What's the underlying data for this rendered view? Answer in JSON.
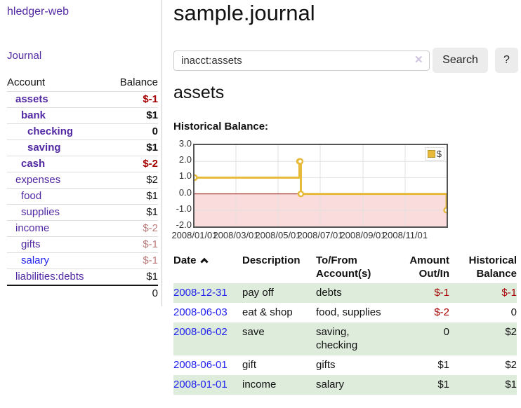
{
  "app": {
    "title": "hledger-web",
    "nav_journal": "Journal"
  },
  "sidebar": {
    "header": {
      "account": "Account",
      "balance": "Balance"
    },
    "accounts": [
      {
        "name": "assets",
        "balance": "$-1"
      },
      {
        "name": "bank",
        "balance": "$1"
      },
      {
        "name": "checking",
        "balance": "0"
      },
      {
        "name": "saving",
        "balance": "$1"
      },
      {
        "name": "cash",
        "balance": "$-2"
      },
      {
        "name": "expenses",
        "balance": "$2"
      },
      {
        "name": "food",
        "balance": "$1"
      },
      {
        "name": "supplies",
        "balance": "$1"
      },
      {
        "name": "income",
        "balance": "$-2"
      },
      {
        "name": "gifts",
        "balance": "$-1"
      },
      {
        "name": "salary",
        "balance": "$-1"
      },
      {
        "name": "liabilities:debts",
        "balance": "$1"
      }
    ],
    "total": "0"
  },
  "main": {
    "title": "sample.journal",
    "search": {
      "value": "inacct:assets",
      "clear_icon": "✕",
      "button": "Search",
      "help": "?"
    },
    "section_title": "assets",
    "chart_title": "Historical Balance:"
  },
  "chart_data": {
    "type": "line",
    "title": "Historical Balance:",
    "step": true,
    "series": [
      {
        "name": "$",
        "color": "#e7ba3a",
        "points": [
          [
            "2008-01-01",
            1
          ],
          [
            "2008-06-01",
            2
          ],
          [
            "2008-06-02",
            2
          ],
          [
            "2008-06-03",
            0
          ],
          [
            "2008-12-31",
            -1
          ]
        ]
      }
    ],
    "x_range": [
      "2008-01-01",
      "2008-12-31"
    ],
    "ylim": [
      -2,
      3
    ],
    "y_ticks": [
      3,
      2,
      1,
      0,
      -1,
      -2
    ],
    "y_tick_labels": [
      "3.0",
      "2.0",
      "1.0",
      "0.0",
      "-1.0",
      "-2.0"
    ],
    "x_tick_dates": [
      "2008-01-01",
      "2008-03-01",
      "2008-05-01",
      "2008-07-01",
      "2008-09-01",
      "2008-11-01"
    ],
    "x_tick_labels": [
      "2008/01/01",
      "2008/03/01",
      "2008/05/01",
      "2008/07/01",
      "2008/09/01",
      "2008/11/01"
    ],
    "legend": {
      "label": "$",
      "position": "top-right"
    },
    "grid": true,
    "negative_region_color": "#fbdcdc",
    "zero_line_color": "#8b0000"
  },
  "table": {
    "headers": {
      "date": "Date",
      "sort_icon": "chevron-up",
      "description": "Description",
      "accounts": "To/From Account(s)",
      "amount": "Amount Out/In",
      "balance": "Historical Balance"
    },
    "rows": [
      {
        "date": "2008-12-31",
        "description": "pay off",
        "accounts": "debts",
        "amount": "$-1",
        "balance": "$-1"
      },
      {
        "date": "2008-06-03",
        "description": "eat & shop",
        "accounts": "food, supplies",
        "amount": "$-2",
        "balance": "0"
      },
      {
        "date": "2008-06-02",
        "description": "save",
        "accounts": "saving, checking",
        "amount": "0",
        "balance": "$2"
      },
      {
        "date": "2008-06-01",
        "description": "gift",
        "accounts": "gifts",
        "amount": "$1",
        "balance": "$2"
      },
      {
        "date": "2008-01-01",
        "description": "income",
        "accounts": "salary",
        "amount": "$1",
        "balance": "$1"
      }
    ]
  },
  "colors": {
    "link_purple": "#5229a3",
    "link_blue": "#2222ee",
    "negative_strong": "#a40000",
    "negative_soft": "#b97a7a",
    "row_stripe_green": "#deecdc",
    "chart_series_gold": "#e7ba3a",
    "chart_negative_pink": "#fbdcdc",
    "chart_zero_line": "#8b0000",
    "button_gray": "#ececec"
  }
}
